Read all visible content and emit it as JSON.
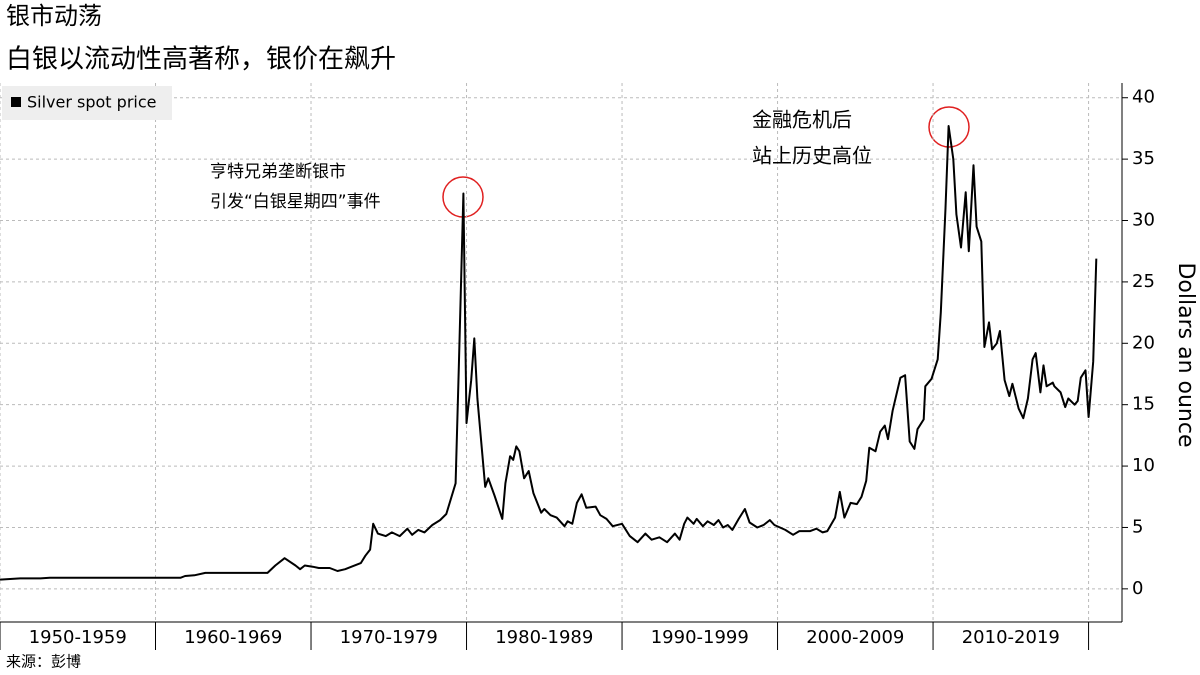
{
  "chart_data": {
    "type": "line",
    "title": "银市动荡",
    "subtitle": "白银以流动性高著称，银价在飙升",
    "y_label": "Dollars an ounce",
    "source": "来源：彭博",
    "annotations": [
      {
        "lines": [
          "亨特兄弟垄断银市",
          "引发“白银星期四”事件"
        ]
      },
      {
        "lines": [
          "金融危机后",
          "站上历史高位"
        ]
      }
    ],
    "categories": [
      "1950-1959",
      "1960-1969",
      "1970-1979",
      "1980-1989",
      "1990-1999",
      "2000-2009",
      "2010-2019"
    ],
    "xticks": [
      1950,
      1960,
      1970,
      1980,
      1990,
      2000,
      2010,
      2020
    ],
    "xlim": [
      1950,
      2022.15
    ],
    "ylim": [
      -2.7,
      41.2
    ],
    "yticks": [
      0,
      5,
      10,
      15,
      20,
      25,
      30,
      35,
      40
    ],
    "grid": true,
    "legend": "top-left",
    "series": [
      {
        "name": "Silver spot price",
        "color": "#000000",
        "x": [
          1950,
          1951.3,
          1952.6,
          1953.2,
          1961.6,
          1961.9,
          1962.5,
          1963.2,
          1967.2,
          1967.7,
          1968.3,
          1969.0,
          1969.3,
          1969.6,
          1970.1,
          1970.5,
          1971.2,
          1971.7,
          1972.2,
          1972.6,
          1973.2,
          1973.5,
          1973.8,
          1974.0,
          1974.3,
          1974.8,
          1975.2,
          1975.7,
          1976.2,
          1976.5,
          1976.9,
          1977.3,
          1977.8,
          1978.3,
          1978.7,
          1979.3,
          1979.5,
          1979.8,
          1980.0,
          1980.3,
          1980.5,
          1980.7,
          1981.2,
          1981.4,
          1981.8,
          1982.3,
          1982.5,
          1982.8,
          1983.0,
          1983.2,
          1983.4,
          1983.7,
          1984.0,
          1984.3,
          1984.8,
          1985.0,
          1985.4,
          1985.8,
          1986.3,
          1986.5,
          1986.8,
          1987.1,
          1987.4,
          1987.7,
          1988.3,
          1988.6,
          1989.0,
          1989.4,
          1990.0,
          1990.5,
          1991.0,
          1991.5,
          1991.9,
          1992.4,
          1992.9,
          1993.4,
          1993.7,
          1994.0,
          1994.2,
          1994.6,
          1994.8,
          1995.2,
          1995.5,
          1995.9,
          1996.2,
          1996.5,
          1996.8,
          1997.1,
          1997.5,
          1997.9,
          1998.2,
          1998.7,
          1999.1,
          1999.5,
          1999.8,
          2000.5,
          2001.0,
          2001.4,
          2002.1,
          2002.5,
          2002.9,
          2003.2,
          2003.7,
          2004.0,
          2004.3,
          2004.7,
          2005.1,
          2005.4,
          2005.7,
          2005.9,
          2006.3,
          2006.6,
          2006.9,
          2007.1,
          2007.4,
          2007.9,
          2008.2,
          2008.5,
          2008.8,
          2009.0,
          2009.4,
          2009.5,
          2009.9,
          2010.3,
          2010.5,
          2010.8,
          2011.0,
          2011.3,
          2011.5,
          2011.8,
          2012.1,
          2012.3,
          2012.6,
          2012.8,
          2013.1,
          2013.3,
          2013.6,
          2013.8,
          2014.1,
          2014.3,
          2014.6,
          2014.9,
          2015.1,
          2015.5,
          2015.8,
          2016.1,
          2016.4,
          2016.6,
          2016.9,
          2017.1,
          2017.3,
          2017.7,
          2017.8,
          2018.2,
          2018.5,
          2018.7,
          2019.1,
          2019.3,
          2019.5,
          2019.8,
          2020.0,
          2020.3,
          2020.5
        ],
        "values": [
          0.75,
          0.85,
          0.85,
          0.9,
          0.9,
          1.05,
          1.1,
          1.3,
          1.3,
          1.9,
          2.5,
          1.9,
          1.6,
          1.9,
          1.8,
          1.7,
          1.7,
          1.45,
          1.6,
          1.8,
          2.1,
          2.7,
          3.2,
          5.3,
          4.5,
          4.3,
          4.6,
          4.3,
          4.9,
          4.4,
          4.8,
          4.6,
          5.2,
          5.6,
          6.1,
          8.6,
          18,
          32.2,
          13.5,
          17,
          20.4,
          15.5,
          8.3,
          9.0,
          7.6,
          5.7,
          8.6,
          10.8,
          10.5,
          11.6,
          11.2,
          9.0,
          9.6,
          7.8,
          6.2,
          6.5,
          6.0,
          5.8,
          5.1,
          5.5,
          5.3,
          7.0,
          7.7,
          6.6,
          6.7,
          6.0,
          5.7,
          5.1,
          5.3,
          4.3,
          3.8,
          4.5,
          4.0,
          4.2,
          3.8,
          4.5,
          4.0,
          5.3,
          5.8,
          5.3,
          5.7,
          5.1,
          5.5,
          5.2,
          5.6,
          5.0,
          5.2,
          4.8,
          5.7,
          6.5,
          5.4,
          5.0,
          5.2,
          5.6,
          5.2,
          4.8,
          4.4,
          4.7,
          4.7,
          4.9,
          4.6,
          4.7,
          5.8,
          7.9,
          5.8,
          7.0,
          6.9,
          7.5,
          8.8,
          11.5,
          11.2,
          12.8,
          13.3,
          12.2,
          14.5,
          17.2,
          17.4,
          12.0,
          11.4,
          13.0,
          13.8,
          16.5,
          17.1,
          18.7,
          22.5,
          31,
          37.7,
          35,
          30.5,
          27.8,
          32.3,
          27.5,
          34.5,
          29.5,
          28.3,
          19.7,
          21.7,
          19.5,
          20.0,
          21.0,
          17.0,
          15.7,
          16.7,
          14.7,
          13.9,
          15.5,
          18.7,
          19.2,
          16.0,
          18.2,
          16.5,
          16.8,
          16.5,
          16.0,
          14.8,
          15.5,
          15.0,
          15.3,
          17.2,
          17.8,
          14.0,
          18.5,
          26.9
        ]
      }
    ]
  }
}
